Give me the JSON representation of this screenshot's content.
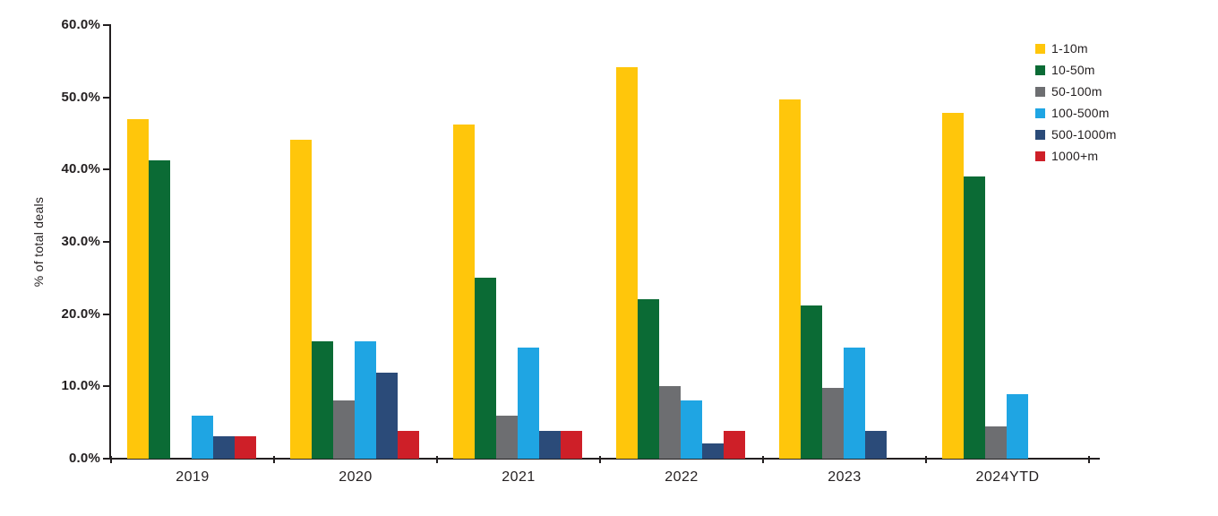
{
  "axis_color": "#231F20",
  "chart_data": {
    "type": "bar",
    "title": "",
    "xlabel": "",
    "ylabel": "% of total deals",
    "ylim": [
      0,
      60
    ],
    "y_ticks": [
      "60.0%",
      "50.0%",
      "40.0%",
      "30.0%",
      "20.0%",
      "10.0%",
      "0.0%"
    ],
    "grid": false,
    "legend_position": "top-right",
    "categories": [
      "2019",
      "2020",
      "2021",
      "2022",
      "2023",
      "2024YTD"
    ],
    "series": [
      {
        "name": "1-10m",
        "color": "#FFC60B",
        "values": [
          47.0,
          44.1,
          46.2,
          54.2,
          49.7,
          47.9
        ]
      },
      {
        "name": "10-50m",
        "color": "#0B6B35",
        "values": [
          41.3,
          16.2,
          25.0,
          22.1,
          21.2,
          39.1
        ]
      },
      {
        "name": "50-100m",
        "color": "#6D6E71",
        "values": [
          0,
          8.0,
          5.9,
          10.0,
          9.8,
          4.5
        ]
      },
      {
        "name": "100-500m",
        "color": "#1FA5E3",
        "values": [
          5.9,
          16.2,
          15.4,
          8.1,
          15.4,
          8.9
        ]
      },
      {
        "name": "500-1000m",
        "color": "#2B4B79",
        "values": [
          3.1,
          11.9,
          3.9,
          2.1,
          3.9,
          0
        ]
      },
      {
        "name": "1000+m",
        "color": "#CE1F28",
        "values": [
          3.1,
          3.9,
          3.9,
          3.9,
          0,
          0
        ]
      }
    ]
  }
}
